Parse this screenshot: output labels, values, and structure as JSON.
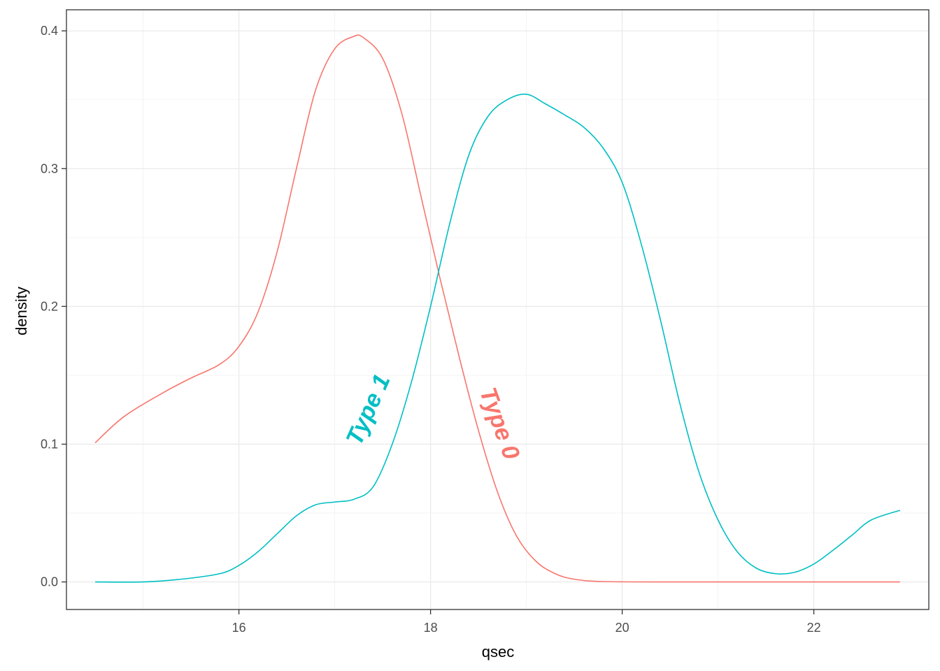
{
  "chart_data": {
    "type": "line",
    "xlabel": "qsec",
    "ylabel": "density",
    "xlim": [
      14.2,
      23.2
    ],
    "ylim": [
      -0.02,
      0.4153
    ],
    "x_ticks": [
      16,
      18,
      20,
      22
    ],
    "x_tick_labels": [
      "16",
      "18",
      "20",
      "22"
    ],
    "x_minor_ticks": [
      15,
      17,
      19,
      21
    ],
    "y_ticks": [
      0.0,
      0.1,
      0.2,
      0.3,
      0.4
    ],
    "y_tick_labels": [
      "0.0",
      "0.1",
      "0.2",
      "0.3",
      "0.4"
    ],
    "y_minor_ticks": [
      0.05,
      0.15,
      0.25,
      0.35
    ],
    "grid": true,
    "legend": "none",
    "series": [
      {
        "name": "Type 0",
        "color": "#F8766D",
        "x": [
          14.5,
          14.8,
          15.2,
          15.5,
          15.8,
          16.0,
          16.2,
          16.4,
          16.6,
          16.8,
          17.0,
          17.2,
          17.3,
          17.5,
          17.7,
          17.9,
          18.1,
          18.3,
          18.5,
          18.7,
          18.9,
          19.1,
          19.3,
          19.5,
          19.8,
          20.5,
          21.5,
          22.9
        ],
        "y": [
          0.101,
          0.12,
          0.137,
          0.148,
          0.158,
          0.171,
          0.196,
          0.24,
          0.3,
          0.357,
          0.387,
          0.396,
          0.395,
          0.38,
          0.34,
          0.28,
          0.22,
          0.163,
          0.11,
          0.065,
          0.033,
          0.015,
          0.006,
          0.002,
          0.0003,
          0.0,
          0.0,
          0.0
        ]
      },
      {
        "name": "Type 1",
        "color": "#00BFC4",
        "x": [
          14.5,
          15.0,
          15.4,
          15.8,
          16.0,
          16.2,
          16.4,
          16.6,
          16.8,
          17.0,
          17.2,
          17.4,
          17.6,
          17.8,
          18.0,
          18.2,
          18.4,
          18.6,
          18.8,
          19.0,
          19.2,
          19.4,
          19.6,
          19.8,
          20.0,
          20.2,
          20.4,
          20.6,
          20.8,
          21.0,
          21.2,
          21.4,
          21.6,
          21.8,
          22.0,
          22.2,
          22.4,
          22.6,
          22.9
        ],
        "y": [
          0.0,
          0.0,
          0.002,
          0.006,
          0.012,
          0.022,
          0.035,
          0.048,
          0.056,
          0.058,
          0.06,
          0.069,
          0.1,
          0.145,
          0.2,
          0.26,
          0.31,
          0.338,
          0.35,
          0.354,
          0.347,
          0.339,
          0.33,
          0.315,
          0.29,
          0.245,
          0.19,
          0.13,
          0.08,
          0.045,
          0.022,
          0.01,
          0.006,
          0.007,
          0.013,
          0.023,
          0.034,
          0.045,
          0.052
        ]
      }
    ],
    "annotations": [
      {
        "text": "Type 1",
        "series": "Type 1",
        "color": "#00BFC4",
        "x": 17.35,
        "y": 0.125,
        "angle_deg": -66
      },
      {
        "text": "Type 0",
        "series": "Type 0",
        "color": "#F8766D",
        "x": 18.72,
        "y": 0.115,
        "angle_deg": 70
      }
    ]
  }
}
